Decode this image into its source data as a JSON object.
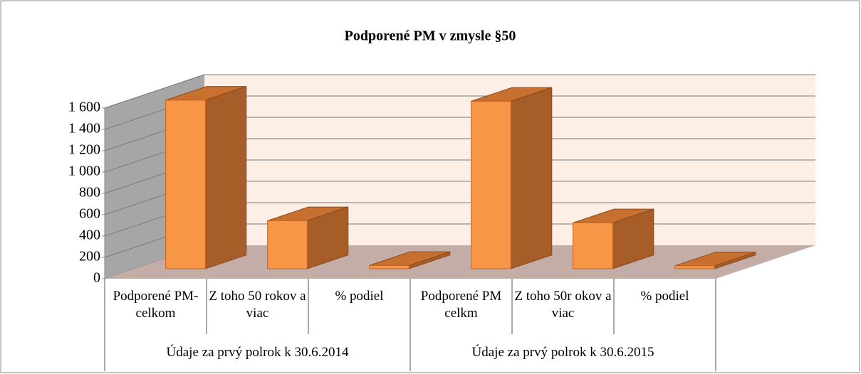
{
  "chart_data": {
    "type": "bar3d",
    "title": "Podporené PM v zmysle §50",
    "categories": [
      "Podporené PM- celkom",
      "Z toho 50 rokov a viac",
      "% podiel",
      "Podporené PM celkm",
      "Z toho 50r okov a viac",
      "% podiel"
    ],
    "groups": [
      "Údaje za prvý polrok k 30.6.2014",
      "Údaje za prvý polrok k 30.6.2015"
    ],
    "values": [
      1580,
      450,
      30,
      1570,
      430,
      27
    ],
    "color": "#f79646",
    "ylim": [
      0,
      1600
    ],
    "yticks": [
      0,
      200,
      400,
      600,
      800,
      {
        "value": 1000,
        "label": "1 000"
      },
      {
        "value": 1200,
        "label": "1 200"
      },
      {
        "value": 1400,
        "label": "1 400"
      },
      {
        "value": 1600,
        "label": "1 600"
      }
    ],
    "grid": true
  }
}
